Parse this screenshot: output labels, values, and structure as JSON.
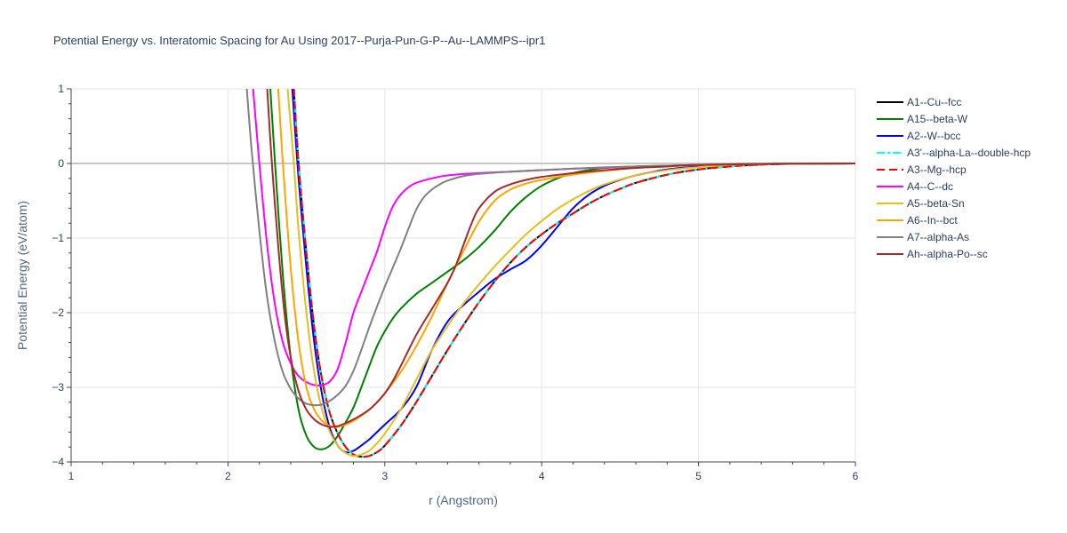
{
  "chart_data": {
    "type": "line",
    "title": "Potential Energy vs. Interatomic Spacing for Au Using 2017--Purja-Pun-G-P--Au--LAMMPS--ipr1",
    "xlabel": "r (Angstrom)",
    "ylabel": "Potential Energy (eV/atom)",
    "xlim": [
      1,
      6
    ],
    "ylim": [
      -4,
      1
    ],
    "xticks": [
      "1",
      "2",
      "3",
      "4",
      "5",
      "6"
    ],
    "yticks": [
      "1",
      "0",
      "−1",
      "−2",
      "−3",
      "−4"
    ],
    "grid": true,
    "legend_position": "right",
    "series": [
      {
        "name": "A1--Cu--fcc",
        "color": "#000000",
        "dash": "solid",
        "x": [
          2.42,
          2.45,
          2.5,
          2.55,
          2.6,
          2.65,
          2.7,
          2.75,
          2.8,
          2.85,
          2.9,
          2.95,
          3.0,
          3.1,
          3.2,
          3.3,
          3.4,
          3.5,
          3.6,
          3.7,
          3.8,
          3.9,
          4.0,
          4.1,
          4.2,
          4.3,
          4.4,
          4.5,
          4.6,
          4.8,
          5.0,
          5.2,
          5.4,
          5.6,
          6.0
        ],
        "y": [
          1.0,
          0.0,
          -1.2,
          -2.2,
          -2.9,
          -3.35,
          -3.62,
          -3.8,
          -3.9,
          -3.93,
          -3.92,
          -3.87,
          -3.78,
          -3.52,
          -3.2,
          -2.85,
          -2.5,
          -2.17,
          -1.86,
          -1.58,
          -1.33,
          -1.12,
          -0.95,
          -0.8,
          -0.67,
          -0.54,
          -0.43,
          -0.34,
          -0.26,
          -0.15,
          -0.08,
          -0.04,
          -0.015,
          -0.005,
          0.0
        ]
      },
      {
        "name": "A15--beta-W",
        "color": "#008000",
        "dash": "solid",
        "x": [
          2.27,
          2.3,
          2.35,
          2.4,
          2.45,
          2.5,
          2.55,
          2.6,
          2.65,
          2.7,
          2.75,
          2.8,
          2.85,
          2.9,
          2.95,
          3.0,
          3.05,
          3.1,
          3.2,
          3.3,
          3.4,
          3.5,
          3.6,
          3.7,
          3.8,
          3.9,
          4.0,
          4.1,
          4.2,
          4.3,
          4.4,
          4.6,
          4.8,
          5.0,
          5.2,
          5.5,
          6.0
        ],
        "y": [
          1.0,
          0.0,
          -1.5,
          -2.6,
          -3.3,
          -3.65,
          -3.8,
          -3.83,
          -3.78,
          -3.65,
          -3.47,
          -3.27,
          -3.0,
          -2.72,
          -2.45,
          -2.25,
          -2.08,
          -1.95,
          -1.75,
          -1.6,
          -1.45,
          -1.3,
          -1.12,
          -0.9,
          -0.65,
          -0.45,
          -0.3,
          -0.2,
          -0.13,
          -0.09,
          -0.06,
          -0.04,
          -0.03,
          -0.02,
          -0.01,
          -0.005,
          0.0
        ]
      },
      {
        "name": "A2--W--bcc",
        "color": "#0000ff",
        "dash": "solid",
        "x": [
          2.41,
          2.45,
          2.5,
          2.55,
          2.6,
          2.65,
          2.7,
          2.75,
          2.8,
          2.85,
          2.9,
          2.95,
          3.0,
          3.1,
          3.2,
          3.3,
          3.4,
          3.5,
          3.6,
          3.7,
          3.8,
          3.9,
          4.0,
          4.1,
          4.2,
          4.3,
          4.4,
          4.5,
          4.6,
          4.8,
          5.0,
          5.2,
          5.5,
          6.0
        ],
        "y": [
          1.0,
          -0.2,
          -1.4,
          -2.4,
          -3.1,
          -3.55,
          -3.78,
          -3.87,
          -3.85,
          -3.78,
          -3.7,
          -3.6,
          -3.5,
          -3.3,
          -3.0,
          -2.5,
          -2.12,
          -1.9,
          -1.72,
          -1.55,
          -1.42,
          -1.3,
          -1.1,
          -0.85,
          -0.6,
          -0.42,
          -0.3,
          -0.22,
          -0.16,
          -0.08,
          -0.04,
          -0.02,
          -0.005,
          0.0
        ]
      },
      {
        "name": "A3'--alpha-La--double-hcp",
        "color": "#00ffff",
        "dash": "dashdot",
        "x": [
          2.42,
          2.45,
          2.5,
          2.55,
          2.6,
          2.65,
          2.7,
          2.75,
          2.8,
          2.85,
          2.9,
          2.95,
          3.0,
          3.1,
          3.2,
          3.3,
          3.4,
          3.5,
          3.6,
          3.7,
          3.8,
          3.9,
          4.0,
          4.1,
          4.2,
          4.3,
          4.4,
          4.5,
          4.6,
          4.8,
          5.0,
          5.2,
          5.4,
          5.6,
          6.0
        ],
        "y": [
          1.0,
          0.0,
          -1.2,
          -2.2,
          -2.9,
          -3.35,
          -3.62,
          -3.8,
          -3.9,
          -3.93,
          -3.92,
          -3.87,
          -3.78,
          -3.52,
          -3.2,
          -2.85,
          -2.5,
          -2.17,
          -1.86,
          -1.58,
          -1.33,
          -1.12,
          -0.95,
          -0.8,
          -0.67,
          -0.54,
          -0.43,
          -0.34,
          -0.26,
          -0.15,
          -0.08,
          -0.04,
          -0.015,
          -0.005,
          0.0
        ]
      },
      {
        "name": "A3--Mg--hcp",
        "color": "#ff0000",
        "dash": "dash",
        "x": [
          2.42,
          2.45,
          2.5,
          2.55,
          2.6,
          2.65,
          2.7,
          2.75,
          2.8,
          2.85,
          2.9,
          2.95,
          3.0,
          3.1,
          3.2,
          3.3,
          3.4,
          3.5,
          3.6,
          3.7,
          3.8,
          3.9,
          4.0,
          4.1,
          4.2,
          4.3,
          4.4,
          4.5,
          4.6,
          4.8,
          5.0,
          5.2,
          5.4,
          5.6,
          6.0
        ],
        "y": [
          1.0,
          0.0,
          -1.2,
          -2.2,
          -2.9,
          -3.35,
          -3.62,
          -3.8,
          -3.9,
          -3.93,
          -3.92,
          -3.87,
          -3.78,
          -3.52,
          -3.2,
          -2.85,
          -2.5,
          -2.17,
          -1.86,
          -1.58,
          -1.33,
          -1.12,
          -0.95,
          -0.8,
          -0.67,
          -0.54,
          -0.43,
          -0.34,
          -0.26,
          -0.15,
          -0.08,
          -0.04,
          -0.015,
          -0.005,
          0.0
        ]
      },
      {
        "name": "A4--C--dc",
        "color": "#ff00ff",
        "dash": "solid",
        "x": [
          2.16,
          2.2,
          2.25,
          2.3,
          2.35,
          2.4,
          2.45,
          2.5,
          2.55,
          2.6,
          2.65,
          2.7,
          2.75,
          2.8,
          2.85,
          2.9,
          2.95,
          3.0,
          3.05,
          3.1,
          3.15,
          3.2,
          3.3,
          3.4,
          3.6,
          3.8,
          4.0,
          4.2,
          4.5,
          5.0,
          5.5,
          6.0
        ],
        "y": [
          1.0,
          0.0,
          -1.1,
          -1.9,
          -2.4,
          -2.68,
          -2.85,
          -2.93,
          -2.97,
          -2.97,
          -2.92,
          -2.75,
          -2.4,
          -2.0,
          -1.72,
          -1.45,
          -1.18,
          -0.85,
          -0.58,
          -0.42,
          -0.32,
          -0.26,
          -0.2,
          -0.16,
          -0.13,
          -0.11,
          -0.09,
          -0.07,
          -0.05,
          -0.02,
          -0.005,
          0.0
        ]
      },
      {
        "name": "A5--beta-Sn",
        "color": "#e6bf1a",
        "dash": "solid",
        "x": [
          2.38,
          2.42,
          2.45,
          2.5,
          2.55,
          2.6,
          2.65,
          2.7,
          2.75,
          2.8,
          2.85,
          2.9,
          2.95,
          3.0,
          3.1,
          3.2,
          3.3,
          3.4,
          3.5,
          3.6,
          3.7,
          3.8,
          3.9,
          4.0,
          4.1,
          4.2,
          4.3,
          4.4,
          4.6,
          4.8,
          5.0,
          5.2,
          5.5,
          6.0
        ],
        "y": [
          1.0,
          0.0,
          -0.9,
          -2.0,
          -2.8,
          -3.3,
          -3.6,
          -3.78,
          -3.88,
          -3.92,
          -3.9,
          -3.85,
          -3.75,
          -3.62,
          -3.3,
          -2.9,
          -2.5,
          -2.18,
          -1.88,
          -1.62,
          -1.38,
          -1.16,
          -0.95,
          -0.77,
          -0.61,
          -0.48,
          -0.37,
          -0.28,
          -0.16,
          -0.09,
          -0.05,
          -0.02,
          -0.005,
          0.0
        ]
      },
      {
        "name": "A6--In--bct",
        "color": "#ffa500",
        "dash": "solid",
        "x": [
          2.32,
          2.35,
          2.4,
          2.45,
          2.5,
          2.55,
          2.6,
          2.65,
          2.7,
          2.75,
          2.8,
          2.85,
          2.9,
          2.95,
          3.0,
          3.1,
          3.2,
          3.3,
          3.4,
          3.5,
          3.6,
          3.7,
          3.8,
          3.9,
          4.0,
          4.2,
          4.4,
          4.6,
          4.8,
          5.0,
          5.5,
          6.0
        ],
        "y": [
          1.0,
          0.0,
          -1.4,
          -2.4,
          -3.0,
          -3.3,
          -3.45,
          -3.52,
          -3.53,
          -3.5,
          -3.45,
          -3.38,
          -3.3,
          -3.2,
          -3.08,
          -2.8,
          -2.45,
          -2.05,
          -1.6,
          -1.18,
          -0.78,
          -0.5,
          -0.35,
          -0.27,
          -0.22,
          -0.15,
          -0.1,
          -0.06,
          -0.04,
          -0.02,
          -0.005,
          0.0
        ]
      },
      {
        "name": "A7--alpha-As",
        "color": "#808080",
        "dash": "solid",
        "x": [
          2.12,
          2.15,
          2.2,
          2.25,
          2.3,
          2.35,
          2.4,
          2.45,
          2.5,
          2.55,
          2.6,
          2.65,
          2.7,
          2.75,
          2.8,
          2.85,
          2.9,
          2.95,
          3.0,
          3.05,
          3.1,
          3.15,
          3.2,
          3.25,
          3.3,
          3.35,
          3.4,
          3.5,
          3.6,
          3.8,
          4.0,
          4.3,
          4.6,
          5.0,
          5.5,
          6.0
        ],
        "y": [
          1.0,
          0.2,
          -0.9,
          -1.8,
          -2.4,
          -2.8,
          -3.02,
          -3.15,
          -3.22,
          -3.24,
          -3.23,
          -3.18,
          -3.1,
          -2.98,
          -2.78,
          -2.5,
          -2.2,
          -1.92,
          -1.65,
          -1.4,
          -1.15,
          -0.88,
          -0.62,
          -0.45,
          -0.35,
          -0.28,
          -0.23,
          -0.17,
          -0.14,
          -0.11,
          -0.09,
          -0.06,
          -0.04,
          -0.02,
          -0.005,
          0.0
        ]
      },
      {
        "name": "Ah--alpha-Po--sc",
        "color": "#a52a2a",
        "dash": "solid",
        "x": [
          2.25,
          2.28,
          2.32,
          2.36,
          2.4,
          2.45,
          2.5,
          2.55,
          2.6,
          2.65,
          2.7,
          2.75,
          2.8,
          2.85,
          2.9,
          2.95,
          3.0,
          3.05,
          3.1,
          3.2,
          3.3,
          3.4,
          3.45,
          3.5,
          3.55,
          3.6,
          3.7,
          3.8,
          3.9,
          4.0,
          4.2,
          4.4,
          4.6,
          4.8,
          5.0,
          5.5,
          6.0
        ],
        "y": [
          1.0,
          0.0,
          -1.1,
          -2.0,
          -2.6,
          -3.05,
          -3.3,
          -3.43,
          -3.5,
          -3.53,
          -3.52,
          -3.48,
          -3.43,
          -3.37,
          -3.3,
          -3.2,
          -3.08,
          -2.92,
          -2.72,
          -2.3,
          -1.95,
          -1.6,
          -1.38,
          -1.1,
          -0.82,
          -0.6,
          -0.38,
          -0.28,
          -0.22,
          -0.18,
          -0.13,
          -0.09,
          -0.06,
          -0.04,
          -0.02,
          -0.005,
          0.0
        ]
      }
    ]
  }
}
